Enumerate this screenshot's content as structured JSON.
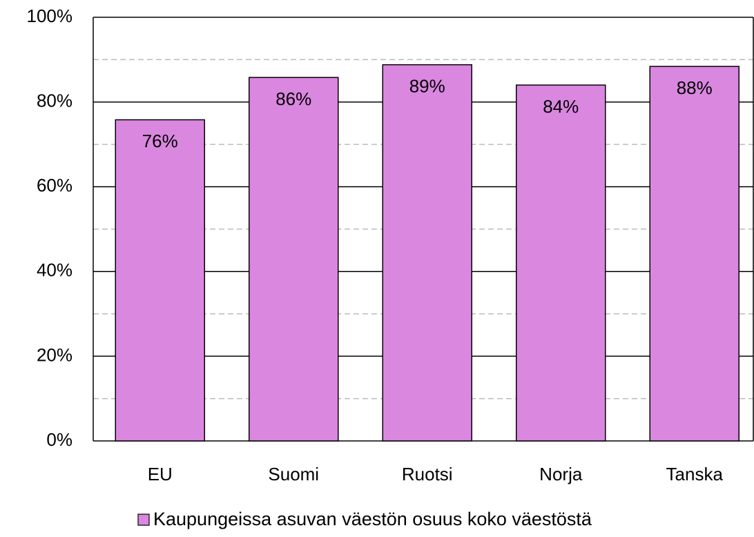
{
  "chart_data": {
    "type": "bar",
    "categories": [
      "EU",
      "Suomi",
      "Ruotsi",
      "Norja",
      "Tanska"
    ],
    "series": [
      {
        "name": "Kaupungeissa asuvan väestön osuus koko väestöstä",
        "color": "#da87e0",
        "values": [
          75.8,
          85.8,
          88.8,
          84,
          88.4
        ],
        "value_labels": [
          "76%",
          "86%",
          "89%",
          "84%",
          "88%"
        ]
      }
    ],
    "ylim": [
      0,
      100
    ],
    "yticks": [
      {
        "value": 0,
        "label": "0%"
      },
      {
        "value": 20,
        "label": "20%"
      },
      {
        "value": 40,
        "label": "40%"
      },
      {
        "value": 60,
        "label": "60%"
      },
      {
        "value": 80,
        "label": "80%"
      },
      {
        "value": 100,
        "label": "100%"
      }
    ],
    "minor_yticks": [
      10,
      30,
      50,
      70,
      90
    ],
    "grid": true,
    "legend": "bottom"
  }
}
